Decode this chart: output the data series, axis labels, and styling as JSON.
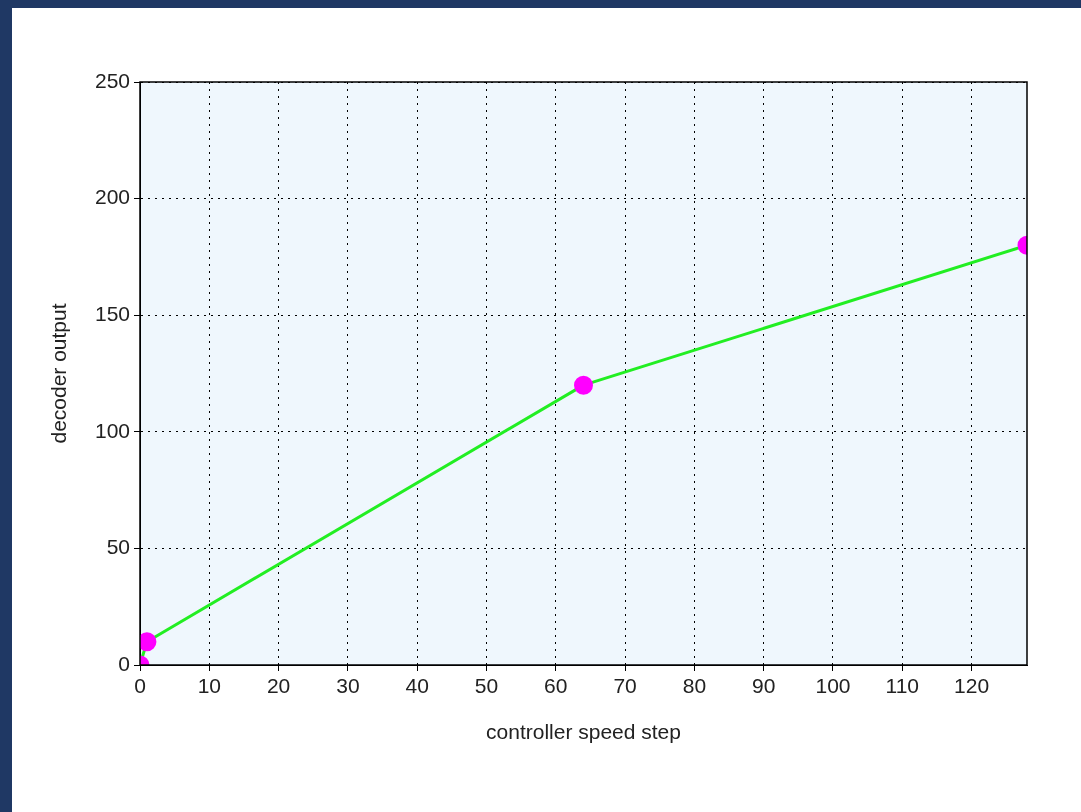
{
  "chart_data": {
    "type": "line",
    "xlabel": "controller speed step",
    "ylabel": "decoder output",
    "x": [
      0,
      1,
      64,
      128
    ],
    "series": [
      {
        "color": "#22ee22",
        "values": [
          0,
          10,
          120,
          180
        ]
      }
    ],
    "xlim": [
      0,
      128
    ],
    "xticks": [
      0,
      10,
      20,
      30,
      40,
      50,
      60,
      70,
      80,
      90,
      100,
      110,
      120
    ],
    "ylim": [
      0,
      250
    ],
    "yticks": [
      0,
      50,
      100,
      150,
      200,
      250
    ],
    "grid": true,
    "marker": "circle",
    "line_style": "solid",
    "legend": false
  }
}
